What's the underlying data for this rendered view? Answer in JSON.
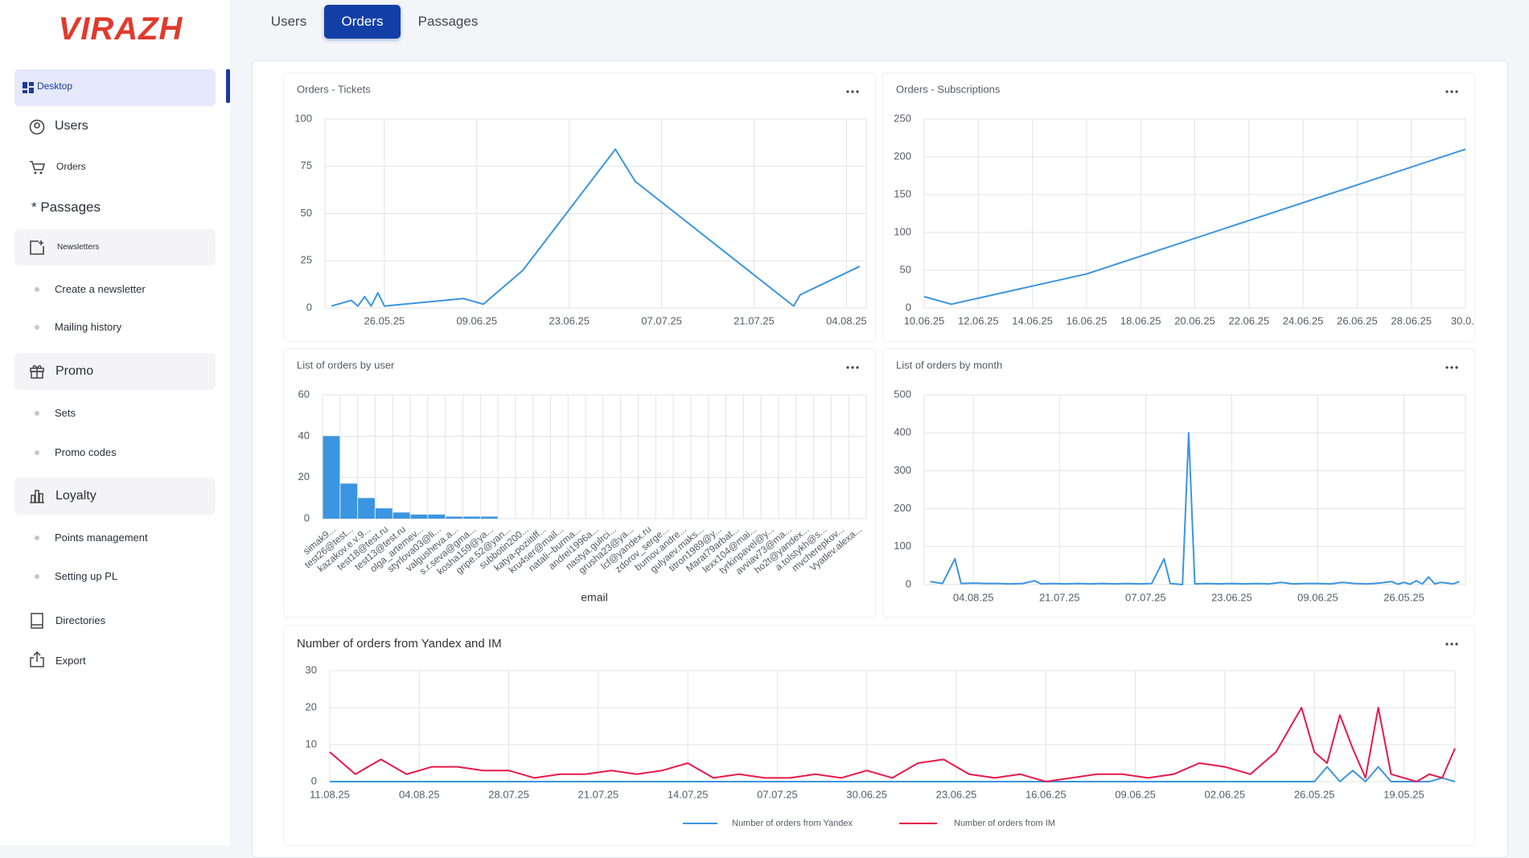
{
  "sidebar": {
    "logo": "VIRAZH",
    "items": [
      "Desktop",
      "Users",
      "Orders",
      "* Passages",
      "Newsletters",
      "Create a newsletter",
      "Mailing history",
      "Promo",
      "Sets",
      "Promo codes",
      "Loyalty",
      "Points management",
      "Setting up PL",
      "Directories",
      "Export"
    ]
  },
  "tabs": [
    "Users",
    "Orders",
    "Passages"
  ],
  "chart_data": [
    {
      "type": "line",
      "title": "Orders - Tickets",
      "color": "#3b95e0",
      "x": [
        "18.05.25",
        "21.05.25",
        "22.05.25",
        "23.05.25",
        "24.05.25",
        "25.05.25",
        "26.05.25",
        "07.06.25",
        "10.06.25",
        "16.06.25",
        "30.06.25",
        "03.07.25",
        "27.07.25",
        "28.07.25",
        "06.08.25"
      ],
      "values": [
        1,
        4,
        1,
        6,
        1,
        8,
        1,
        5,
        2,
        20,
        84,
        67,
        1,
        7,
        22
      ],
      "xlim": [
        "17.05.25",
        "07.08.25"
      ],
      "xticks": [
        "26.05.25",
        "09.06.25",
        "23.06.25",
        "07.07.25",
        "21.07.25",
        "04.08.25"
      ],
      "ylim": [
        0,
        100
      ],
      "yticks": [
        0,
        25,
        50,
        75,
        100
      ],
      "grid": true
    },
    {
      "type": "line",
      "title": "Orders - Subscriptions",
      "color": "#3b95e0",
      "x": [
        "10.06.25",
        "11.06.25",
        "16.06.25",
        "30.06.25"
      ],
      "values": [
        15,
        5,
        45,
        210
      ],
      "xlim": [
        "10.06.25",
        "30.06.25"
      ],
      "xticks": [
        "10.06.25",
        "12.06.25",
        "14.06.25",
        "16.06.25",
        "18.06.25",
        "20.06.25",
        "22.06.25",
        "24.06.25",
        "26.06.25",
        "28.06.25",
        {
          "value": "30.06.25",
          "label": "30.0..."
        }
      ],
      "ylim": [
        0,
        250
      ],
      "yticks": [
        0,
        50,
        100,
        150,
        200,
        250
      ],
      "grid": true
    },
    {
      "type": "bar",
      "title": "List of orders by user",
      "color": "#3b95e0",
      "x_label": "email",
      "categories": [
        "simak9...",
        "test26@test...",
        "kazakov.e.v.9...",
        "test18@test.ru",
        "test13@test.ru",
        "olga_artemev...",
        "styrlova03@li...",
        "valgusheva.a...",
        "s.r.seva@gma...",
        "kosha159@ya...",
        "gripe.52@yan...",
        "subbotin200...",
        "katya-poziitiff...",
        "kru4ser@mail...",
        "natali--burma...",
        "andrei1996a...",
        "nastya.gulrci...",
        "grusha23@ya...",
        "lcf@yandex.ru",
        "zdorov_serge...",
        "bumov.andre...",
        "gulyaev.maks...",
        "titron1989@y...",
        "Marat79arbat...",
        "lexx104@mai...",
        "tyrkinpavel@y...",
        "avviav73@ma...",
        "ho2t@yandex...",
        "a.tolstykh@s...",
        "mvcherepkov...",
        "Vyatlev.alexa..."
      ],
      "values": [
        40,
        17,
        10,
        5,
        3,
        2,
        2,
        1,
        1,
        1,
        0,
        0,
        0,
        0,
        0,
        0,
        0,
        0,
        0,
        0,
        0,
        0,
        0,
        0,
        0,
        0,
        0,
        0,
        0,
        0,
        0
      ],
      "ylim": [
        0,
        60
      ],
      "yticks": [
        0,
        20,
        40,
        60
      ],
      "grid": true
    },
    {
      "type": "line",
      "title": "List of orders by month",
      "color": "#3b95e0",
      "x": [
        "11.08.25",
        "09.08.25",
        "07.08.25",
        "06.08.25",
        "04.08.25",
        "02.08.25",
        "31.07.25",
        "29.07.25",
        "27.07.25",
        "25.07.25",
        "24.07.25",
        "22.07.25",
        "20.07.25",
        "18.07.25",
        "16.07.25",
        "14.07.25",
        "12.07.25",
        "10.07.25",
        "08.07.25",
        "06.07.25",
        "04.07.25",
        "03.07.25",
        "01.07.25",
        "30.06.25",
        "29.06.25",
        "27.06.25",
        "25.06.25",
        "23.06.25",
        "21.06.25",
        "19.06.25",
        "17.06.25",
        "15.06.25",
        "13.06.25",
        "11.06.25",
        "09.06.25",
        "07.06.25",
        "05.06.25",
        "03.06.25",
        "01.06.25",
        "30.05.25",
        "28.05.25",
        "27.05.25",
        "26.05.25",
        "25.05.25",
        "24.05.25",
        "23.05.25",
        "22.05.25",
        "21.05.25",
        "20.05.25",
        "19.05.25",
        "18.05.25",
        "17.05.25"
      ],
      "values": [
        8,
        3,
        68,
        3,
        4,
        3,
        3,
        2,
        3,
        10,
        2,
        3,
        2,
        3,
        2,
        3,
        2,
        3,
        2,
        3,
        68,
        3,
        0,
        400,
        2,
        3,
        2,
        3,
        2,
        3,
        2,
        6,
        2,
        3,
        3,
        2,
        6,
        3,
        2,
        4,
        8,
        1,
        6,
        1,
        10,
        2,
        20,
        2,
        6,
        4,
        2,
        8
      ],
      "xlim": [
        "12.08.25",
        "16.05.25"
      ],
      "xticks": [
        "04.08.25",
        "21.07.25",
        "07.07.25",
        "23.06.25",
        "09.06.25",
        "26.05.25"
      ],
      "ylim": [
        0,
        500
      ],
      "yticks": [
        0,
        100,
        200,
        300,
        400,
        500
      ],
      "grid": true
    },
    {
      "type": "line",
      "title": "Number of orders from Yandex and IM",
      "x": [
        "11.08.25",
        "09.08.25",
        "07.08.25",
        "05.08.25",
        "03.08.25",
        "01.08.25",
        "30.07.25",
        "28.07.25",
        "26.07.25",
        "24.07.25",
        "22.07.25",
        "20.07.25",
        "18.07.25",
        "16.07.25",
        "14.07.25",
        "12.07.25",
        "10.07.25",
        "08.07.25",
        "06.07.25",
        "04.07.25",
        "02.07.25",
        "30.06.25",
        "28.06.25",
        "26.06.25",
        "24.06.25",
        "22.06.25",
        "20.06.25",
        "18.06.25",
        "16.06.25",
        "14.06.25",
        "12.06.25",
        "10.06.25",
        "08.06.25",
        "06.06.25",
        "04.06.25",
        "02.06.25",
        "31.05.25",
        "29.05.25",
        "27.05.25",
        "26.05.25",
        "25.05.25",
        "24.05.25",
        "23.05.25",
        "22.05.25",
        "21.05.25",
        "20.05.25",
        "19.05.25",
        "18.05.25",
        "17.05.25",
        "16.05.25",
        "15.05.25"
      ],
      "series": [
        {
          "name": "Number of orders from Yandex",
          "color": "#3b95e0",
          "values": [
            0,
            0,
            0,
            0,
            0,
            0,
            0,
            0,
            0,
            0,
            0,
            0,
            0,
            0,
            0,
            0,
            0,
            0,
            0,
            0,
            0,
            0,
            0,
            0,
            0,
            0,
            0,
            0,
            0,
            0,
            0,
            0,
            0,
            0,
            0,
            0,
            0,
            0,
            0,
            0,
            4,
            0,
            3,
            0,
            4,
            0,
            0,
            0,
            0,
            1,
            0
          ]
        },
        {
          "name": "Number of orders from IM",
          "color": "#e8194b",
          "values": [
            8,
            2,
            6,
            2,
            4,
            4,
            3,
            3,
            1,
            2,
            2,
            3,
            2,
            3,
            5,
            1,
            2,
            1,
            1,
            2,
            1,
            3,
            1,
            5,
            6,
            2,
            1,
            2,
            0,
            1,
            2,
            2,
            1,
            2,
            5,
            4,
            2,
            8,
            20,
            8,
            5,
            18,
            9,
            1,
            20,
            2,
            1,
            0,
            2,
            1,
            9
          ]
        }
      ],
      "xlim": [
        "11.08.25",
        "15.05.25"
      ],
      "xticks": [
        "11.08.25",
        "04.08.25",
        "28.07.25",
        "21.07.25",
        "14.07.25",
        "07.07.25",
        "30.06.25",
        "23.06.25",
        "16.06.25",
        "09.06.25",
        "02.06.25",
        "26.05.25",
        "19.05.25"
      ],
      "ylim": [
        0,
        30
      ],
      "yticks": [
        0,
        10,
        20,
        30
      ],
      "grid": true,
      "legend": "bottom"
    }
  ]
}
